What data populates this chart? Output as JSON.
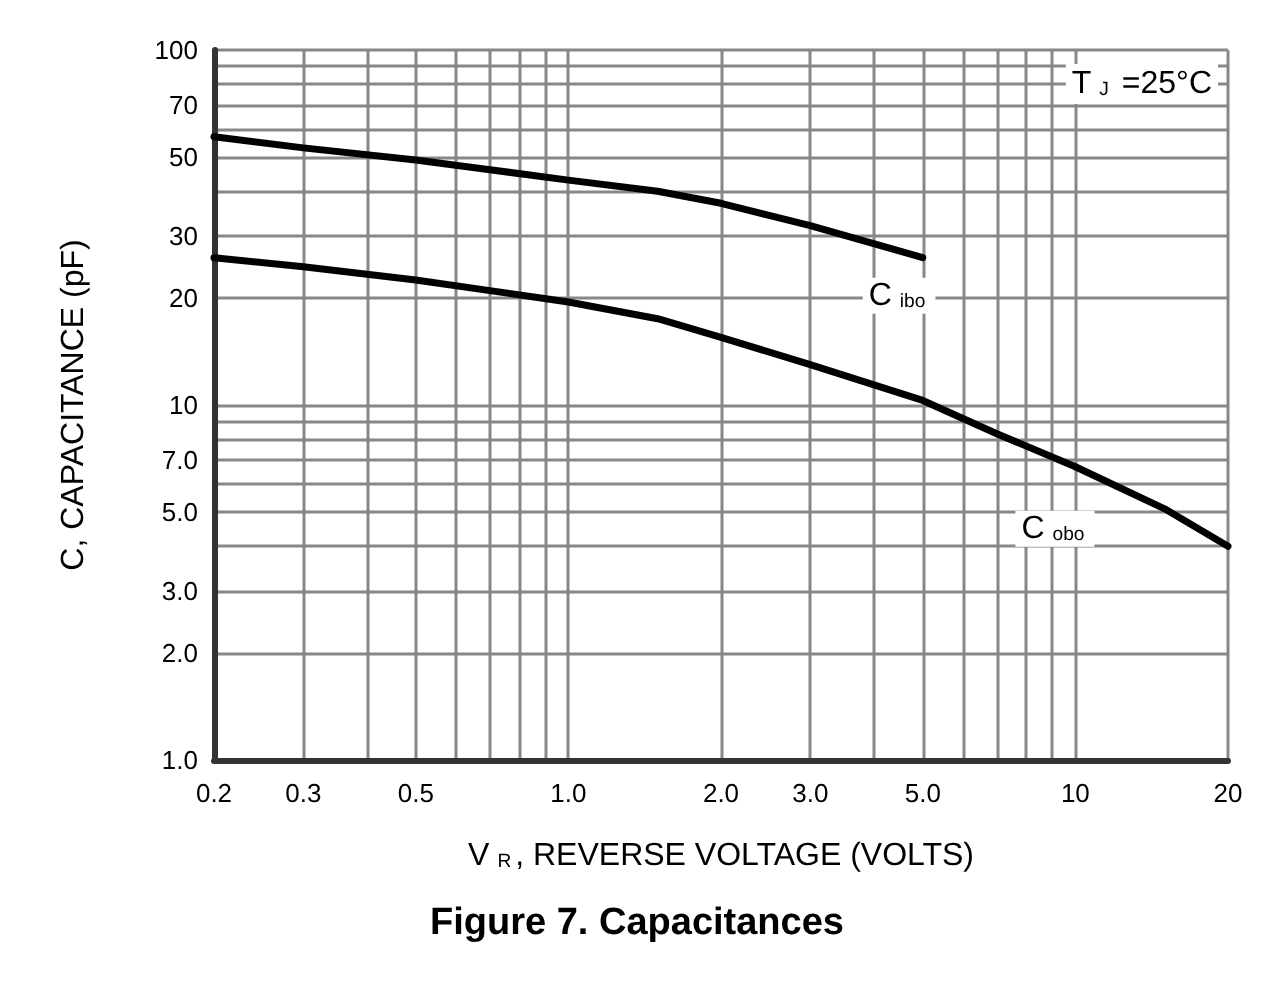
{
  "chart_data": {
    "type": "line",
    "title": "Figure 7. Capacitances",
    "xlabel": "V$_{R}$, REVERSE VOLTAGE (VOLTS)",
    "ylabel": "C, CAPACITANCE (pF)",
    "annotations": [
      "T$_{J}$ =25°C"
    ],
    "log": "xy",
    "grid": true,
    "legend": false,
    "marker": "none",
    "line_style": "solid",
    "xlim": [
      0.2,
      20
    ],
    "ylim": [
      1,
      100
    ],
    "xticks": [
      {
        "value": 0.2,
        "label": "0.2"
      },
      {
        "value": 0.3,
        "label": "0.3"
      },
      {
        "value": 0.4,
        "label": null
      },
      {
        "value": 0.5,
        "label": "0.5"
      },
      {
        "value": 0.6,
        "label": null
      },
      {
        "value": 0.7,
        "label": null
      },
      {
        "value": 0.8,
        "label": null
      },
      {
        "value": 0.9,
        "label": null
      },
      {
        "value": 1,
        "label": "1.0"
      },
      {
        "value": 2,
        "label": "2.0"
      },
      {
        "value": 3,
        "label": "3.0"
      },
      {
        "value": 4,
        "label": null
      },
      {
        "value": 5,
        "label": "5.0"
      },
      {
        "value": 6,
        "label": null
      },
      {
        "value": 7,
        "label": null
      },
      {
        "value": 8,
        "label": null
      },
      {
        "value": 9,
        "label": null
      },
      10,
      20
    ],
    "yticks": [
      {
        "value": 1,
        "label": "1.0"
      },
      {
        "value": 2,
        "label": "2.0"
      },
      {
        "value": 3,
        "label": "3.0"
      },
      {
        "value": 4,
        "label": null
      },
      {
        "value": 5,
        "label": "5.0"
      },
      {
        "value": 6,
        "label": null
      },
      {
        "value": 7,
        "label": "7.0"
      },
      {
        "value": 8,
        "label": null
      },
      {
        "value": 9,
        "label": null
      },
      10,
      20,
      30,
      {
        "value": 40,
        "label": null
      },
      50,
      {
        "value": 60,
        "label": null
      },
      70,
      {
        "value": 80,
        "label": null
      },
      {
        "value": 90,
        "label": null
      },
      100
    ],
    "series": [
      {
        "name": "C$_{ibo}$",
        "color": "#000000",
        "x": [
          0.2,
          0.3,
          0.5,
          0.7,
          1,
          1.5,
          2,
          3,
          4,
          5
        ],
        "values": [
          57,
          53,
          49,
          46,
          43,
          40,
          37,
          32,
          28.5,
          26
        ]
      },
      {
        "name": "C$_{obo}$",
        "color": "#000000",
        "x": [
          0.2,
          0.3,
          0.5,
          0.7,
          1,
          1.5,
          2,
          3,
          5,
          7,
          10,
          15,
          20
        ],
        "values": [
          26,
          24.5,
          22.5,
          21,
          19.5,
          17.5,
          15.5,
          13,
          10.3,
          8.3,
          6.7,
          5.1,
          4
        ]
      }
    ]
  }
}
